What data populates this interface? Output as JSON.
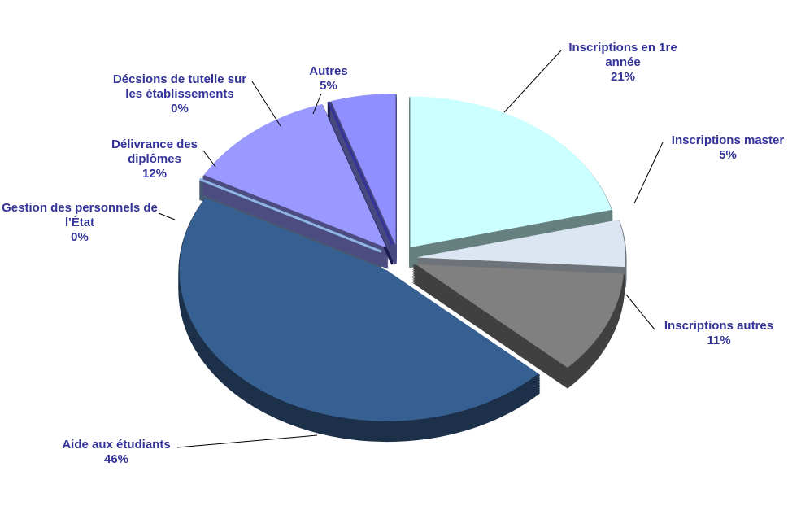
{
  "chart_data": {
    "type": "pie",
    "categories": [
      "Inscriptions en 1re année",
      "Inscriptions master",
      "Inscriptions autres",
      "Aide aux étudiants",
      "Gestion des personnels de l'État",
      "Délivrance des diplômes",
      "Décsions de tutelle sur les établissements",
      "Autres"
    ],
    "values": [
      21,
      5,
      11,
      46,
      0,
      12,
      0,
      5
    ],
    "value_labels": [
      "21%",
      "5%",
      "11%",
      "46%",
      "0%",
      "12%",
      "0%",
      "5%"
    ],
    "colors": [
      "#ccffff",
      "#dce6f2",
      "#808080",
      "#376092",
      "#8eb4e3",
      "#9999ff",
      "#333399",
      "#8f8fff"
    ]
  }
}
